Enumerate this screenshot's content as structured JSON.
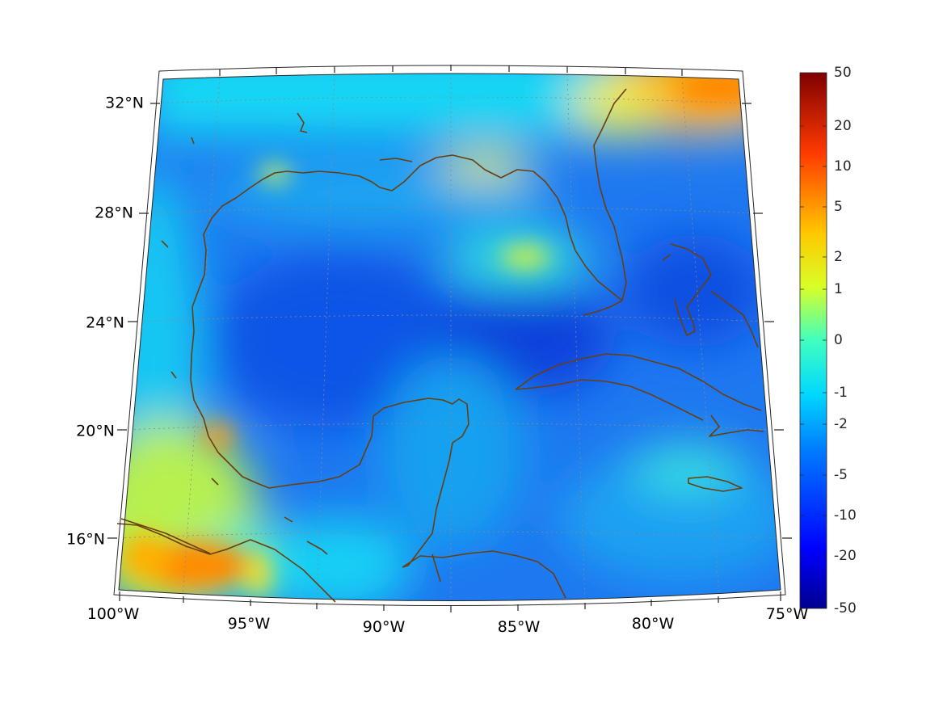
{
  "map": {
    "region": "Gulf of Mexico and Caribbean",
    "projection": "conic",
    "longitude_labels": [
      "100°W",
      "95°W",
      "90°W",
      "85°W",
      "80°W",
      "75°W"
    ],
    "latitude_labels": [
      "32°N",
      "28°N",
      "24°N",
      "20°N",
      "16°N"
    ],
    "coastline_color": "#6b3e10",
    "grid": true
  },
  "colorbar": {
    "colormap": "jet",
    "tick_labels": [
      "50",
      "20",
      "10",
      "5",
      "2",
      "1",
      "0",
      "-1",
      "-2",
      "-5",
      "-10",
      "-20",
      "-50"
    ],
    "min_color": "#00008f",
    "max_color": "#800000"
  }
}
